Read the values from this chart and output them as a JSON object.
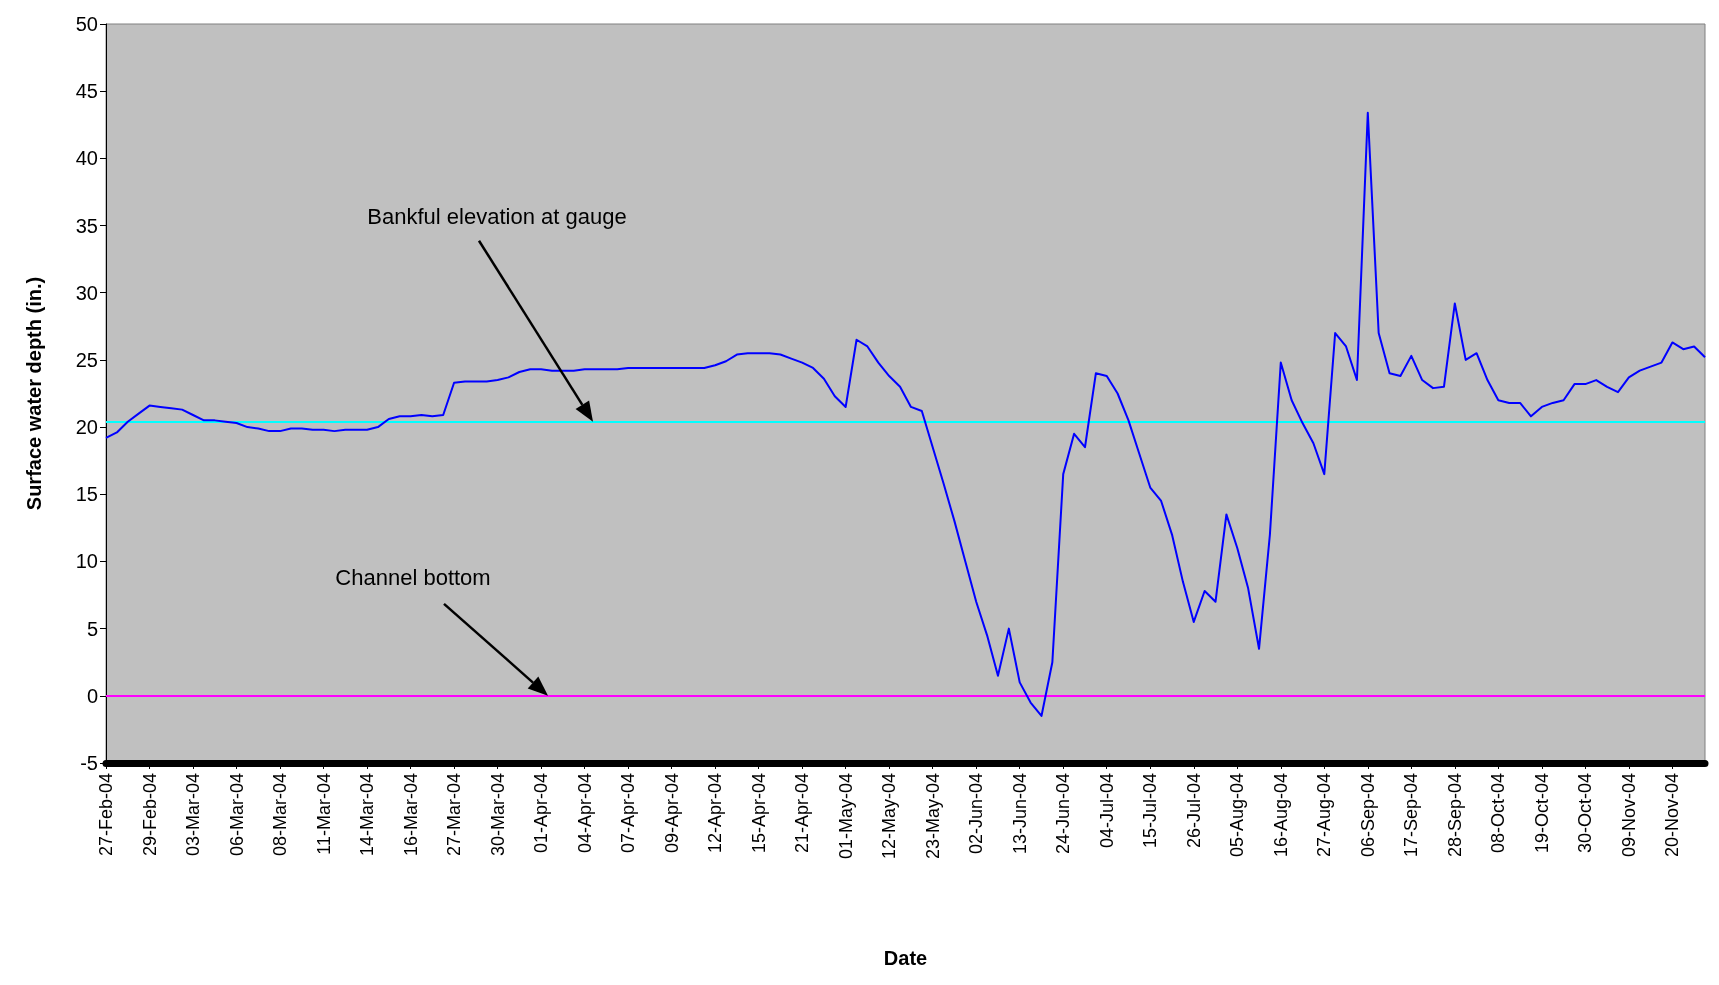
{
  "chart_data": {
    "type": "line",
    "xlabel": "Date",
    "ylabel": "Surface water depth (in.)",
    "categories": [
      "27-Feb-04",
      null,
      null,
      null,
      "29-Feb-04",
      null,
      null,
      null,
      "03-Mar-04",
      null,
      null,
      null,
      "06-Mar-04",
      null,
      null,
      null,
      "08-Mar-04",
      null,
      null,
      null,
      "11-Mar-04",
      null,
      null,
      null,
      "14-Mar-04",
      null,
      null,
      null,
      "16-Mar-04",
      null,
      null,
      null,
      "27-Mar-04",
      null,
      null,
      null,
      "30-Mar-04",
      null,
      null,
      null,
      "01-Apr-04",
      null,
      null,
      null,
      "04-Apr-04",
      null,
      null,
      null,
      "07-Apr-04",
      null,
      null,
      null,
      "09-Apr-04",
      null,
      null,
      null,
      "12-Apr-04",
      null,
      null,
      null,
      "15-Apr-04",
      null,
      null,
      null,
      "21-Apr-04",
      null,
      null,
      null,
      "01-May-04",
      null,
      null,
      null,
      "12-May-04",
      null,
      null,
      null,
      "23-May-04",
      null,
      null,
      null,
      "02-Jun-04",
      null,
      null,
      null,
      "13-Jun-04",
      null,
      null,
      null,
      "24-Jun-04",
      null,
      null,
      null,
      "04-Jul-04",
      null,
      null,
      null,
      "15-Jul-04",
      null,
      null,
      null,
      "26-Jul-04",
      null,
      null,
      null,
      "05-Aug-04",
      null,
      null,
      null,
      "16-Aug-04",
      null,
      null,
      null,
      "27-Aug-04",
      null,
      null,
      null,
      "06-Sep-04",
      null,
      null,
      null,
      "17-Sep-04",
      null,
      null,
      null,
      "28-Sep-04",
      null,
      null,
      null,
      "08-Oct-04",
      null,
      null,
      null,
      "19-Oct-04",
      null,
      null,
      null,
      "30-Oct-04",
      null,
      null,
      null,
      "09-Nov-04",
      null,
      null,
      null,
      "20-Nov-04",
      null,
      null,
      null
    ],
    "series": [
      {
        "color": "#0000ff",
        "values": [
          19.2,
          19.6,
          20.4,
          21.0,
          21.6,
          21.5,
          21.4,
          21.3,
          20.9,
          20.5,
          20.5,
          20.4,
          20.3,
          20.0,
          19.9,
          19.7,
          19.7,
          19.9,
          19.9,
          19.8,
          19.8,
          19.7,
          19.8,
          19.8,
          19.8,
          20.0,
          20.6,
          20.8,
          20.8,
          20.9,
          20.8,
          20.9,
          23.3,
          23.4,
          23.4,
          23.4,
          23.5,
          23.7,
          24.1,
          24.3,
          24.3,
          24.2,
          24.2,
          24.2,
          24.3,
          24.3,
          24.3,
          24.3,
          24.4,
          24.4,
          24.4,
          24.4,
          24.4,
          24.4,
          24.4,
          24.4,
          24.6,
          24.9,
          25.4,
          25.5,
          25.5,
          25.5,
          25.4,
          25.1,
          24.8,
          24.4,
          23.6,
          22.3,
          21.5,
          26.5,
          26.0,
          24.8,
          23.8,
          23.0,
          21.5,
          21.2,
          18.5,
          15.8,
          13.0,
          10.0,
          7.0,
          4.5,
          1.5,
          5.0,
          1.0,
          -0.5,
          -1.5,
          2.5,
          16.5,
          19.5,
          18.5,
          24.0,
          23.8,
          22.5,
          20.5,
          18.0,
          15.5,
          14.5,
          12.0,
          8.5,
          5.5,
          7.8,
          7.0,
          13.5,
          11.0,
          8.0,
          3.5,
          12.0,
          24.8,
          22.0,
          20.3,
          18.8,
          16.5,
          27.0,
          26.0,
          23.5,
          43.4,
          27.0,
          24.0,
          23.8,
          25.3,
          23.5,
          22.9,
          23.0,
          29.2,
          25.0,
          25.5,
          23.5,
          22.0,
          21.8,
          21.8,
          20.8,
          21.5,
          21.8,
          22.0,
          23.2,
          23.2,
          23.5,
          23.0,
          22.6,
          23.7,
          24.2,
          24.5,
          24.8,
          26.3,
          25.8,
          26.0,
          25.2
        ]
      }
    ],
    "ylim": [
      -5,
      50
    ],
    "yticks": [
      -5,
      0,
      5,
      10,
      15,
      20,
      25,
      30,
      35,
      40,
      45,
      50
    ],
    "grid": false,
    "marker": "none",
    "line_style": "solid",
    "ref_lines": [
      {
        "axis": "y",
        "value": 20.4,
        "color": "#00ffff"
      },
      {
        "axis": "y",
        "value": 0,
        "color": "#ff00ff"
      }
    ],
    "annotations": [
      "Bankful elevation at gauge",
      "Channel bottom"
    ]
  }
}
